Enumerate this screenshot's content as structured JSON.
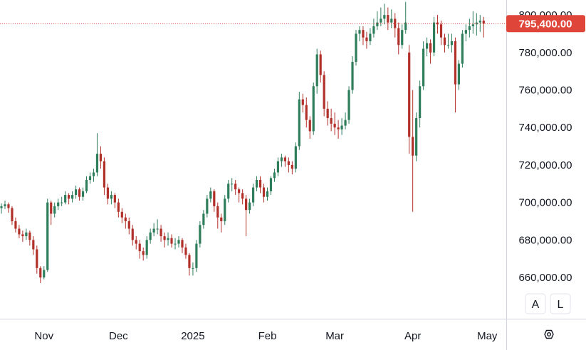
{
  "chart_data": {
    "type": "candlestick",
    "colors": {
      "up": "#2e7d5b",
      "down": "#b2302a",
      "price_line": "#e0453a",
      "grid": "#e0e3eb",
      "axis": "#d1d4dc",
      "text": "#131722"
    },
    "last_price": 795400,
    "last_price_label": "795,400.00",
    "y_axis": {
      "range": [
        638000,
        808000
      ],
      "ticks": [
        {
          "value": 800000,
          "label": "800,000.00"
        },
        {
          "value": 780000,
          "label": "780,000.00"
        },
        {
          "value": 760000,
          "label": "760,000.00"
        },
        {
          "value": 740000,
          "label": "740,000.00"
        },
        {
          "value": 720000,
          "label": "720,000.00"
        },
        {
          "value": 700000,
          "label": "700,000.00"
        },
        {
          "value": 680000,
          "label": "680,000.00"
        },
        {
          "value": 660000,
          "label": "660,000.00"
        }
      ]
    },
    "x_axis": {
      "ticks": [
        {
          "label": "Nov",
          "index": 12
        },
        {
          "label": "Dec",
          "index": 33
        },
        {
          "label": "2025",
          "index": 54
        },
        {
          "label": "Feb",
          "index": 75
        },
        {
          "label": "Mar",
          "index": 94
        },
        {
          "label": "Apr",
          "index": 116
        },
        {
          "label": "May",
          "index": 137
        }
      ]
    },
    "closes": [
      698000,
      699000,
      697000,
      690000,
      686000,
      683000,
      682000,
      684000,
      680000,
      675000,
      665000,
      660000,
      664000,
      700000,
      694000,
      698000,
      700000,
      700000,
      704000,
      702000,
      704000,
      707000,
      703000,
      706000,
      712000,
      714000,
      716000,
      726000,
      722000,
      708000,
      702000,
      704000,
      700000,
      695000,
      692000,
      690000,
      686000,
      680000,
      678000,
      674000,
      672000,
      680000,
      684000,
      686000,
      686000,
      682000,
      680000,
      681000,
      678000,
      678000,
      680000,
      676000,
      672000,
      665000,
      665000,
      678000,
      688000,
      694000,
      702000,
      706000,
      698000,
      692000,
      690000,
      702000,
      710000,
      710000,
      707000,
      705000,
      702000,
      696000,
      700000,
      708000,
      712000,
      708000,
      703000,
      706000,
      713000,
      716000,
      722000,
      724000,
      722000,
      720000,
      718000,
      730000,
      755000,
      752000,
      744000,
      738000,
      762000,
      779000,
      768000,
      750000,
      745000,
      742000,
      740000,
      739000,
      741000,
      744000,
      760000,
      775000,
      790000,
      792000,
      788000,
      786000,
      790000,
      794000,
      796000,
      798000,
      800000,
      796000,
      798000,
      793000,
      784000,
      792000,
      796000,
      735000,
      725000,
      745000,
      762000,
      782000,
      785000,
      780000,
      796000,
      795000,
      788000,
      784000,
      784000,
      786000,
      763000,
      774000,
      790000,
      792000,
      794000,
      795000,
      796000,
      797000,
      795400
    ],
    "candles": [
      [
        697000,
        699500,
        694000,
        698000
      ],
      [
        698000,
        701000,
        696500,
        699000
      ],
      [
        699000,
        700000,
        694500,
        697000
      ],
      [
        697000,
        698000,
        688000,
        690000
      ],
      [
        690000,
        692000,
        684000,
        686000
      ],
      [
        686000,
        688000,
        681000,
        683000
      ],
      [
        683000,
        685000,
        679000,
        682000
      ],
      [
        682000,
        686000,
        680000,
        684000
      ],
      [
        684000,
        685000,
        677000,
        680000
      ],
      [
        680000,
        682000,
        672000,
        675000
      ],
      [
        675000,
        677000,
        662000,
        665000
      ],
      [
        665000,
        666000,
        657000,
        660000
      ],
      [
        660000,
        666000,
        659000,
        664000
      ],
      [
        664000,
        702000,
        663000,
        700000
      ],
      [
        700000,
        701000,
        688000,
        694000
      ],
      [
        694000,
        700000,
        692000,
        698000
      ],
      [
        698000,
        702000,
        696000,
        700000
      ],
      [
        700000,
        703000,
        698000,
        700000
      ],
      [
        700000,
        706000,
        699000,
        704000
      ],
      [
        704000,
        705000,
        699000,
        702000
      ],
      [
        702000,
        706000,
        700000,
        704000
      ],
      [
        704000,
        709000,
        702000,
        707000
      ],
      [
        707000,
        708000,
        701000,
        703000
      ],
      [
        703000,
        708000,
        701000,
        706000
      ],
      [
        706000,
        714000,
        705000,
        712000
      ],
      [
        712000,
        716000,
        710000,
        714000
      ],
      [
        714000,
        718000,
        711000,
        716000
      ],
      [
        716000,
        737000,
        714000,
        726000
      ],
      [
        726000,
        730000,
        718000,
        722000
      ],
      [
        722000,
        724000,
        704000,
        708000
      ],
      [
        708000,
        710000,
        699000,
        702000
      ],
      [
        702000,
        706000,
        699000,
        704000
      ],
      [
        704000,
        705000,
        697000,
        700000
      ],
      [
        700000,
        702000,
        692000,
        695000
      ],
      [
        695000,
        697000,
        689000,
        692000
      ],
      [
        692000,
        694000,
        686000,
        690000
      ],
      [
        690000,
        692000,
        683000,
        686000
      ],
      [
        686000,
        688000,
        677000,
        680000
      ],
      [
        680000,
        682000,
        675000,
        678000
      ],
      [
        678000,
        680000,
        670000,
        674000
      ],
      [
        674000,
        676000,
        669000,
        672000
      ],
      [
        672000,
        682000,
        670000,
        680000
      ],
      [
        680000,
        686000,
        678000,
        684000
      ],
      [
        684000,
        689000,
        682000,
        686000
      ],
      [
        686000,
        691000,
        683000,
        686000
      ],
      [
        686000,
        688000,
        679000,
        682000
      ],
      [
        682000,
        684000,
        676000,
        680000
      ],
      [
        680000,
        684000,
        677000,
        681000
      ],
      [
        681000,
        683000,
        676000,
        678000
      ],
      [
        678000,
        681000,
        675000,
        678000
      ],
      [
        678000,
        682000,
        676000,
        680000
      ],
      [
        680000,
        681000,
        673000,
        676000
      ],
      [
        676000,
        678000,
        670000,
        672000
      ],
      [
        672000,
        673000,
        661000,
        665000
      ],
      [
        665000,
        668000,
        661000,
        665000
      ],
      [
        665000,
        680000,
        663000,
        678000
      ],
      [
        678000,
        690000,
        676000,
        688000
      ],
      [
        688000,
        696000,
        686000,
        694000
      ],
      [
        694000,
        704000,
        692000,
        702000
      ],
      [
        702000,
        708000,
        700000,
        706000
      ],
      [
        706000,
        707000,
        695000,
        698000
      ],
      [
        698000,
        700000,
        686000,
        692000
      ],
      [
        692000,
        694000,
        684000,
        690000
      ],
      [
        690000,
        704000,
        688000,
        702000
      ],
      [
        702000,
        712000,
        700000,
        710000
      ],
      [
        710000,
        713000,
        706000,
        710000
      ],
      [
        710000,
        712000,
        704000,
        707000
      ],
      [
        707000,
        708000,
        700000,
        705000
      ],
      [
        705000,
        707000,
        699000,
        702000
      ],
      [
        702000,
        704000,
        682000,
        696000
      ],
      [
        696000,
        702000,
        694000,
        700000
      ],
      [
        700000,
        710000,
        698000,
        708000
      ],
      [
        708000,
        714000,
        706000,
        712000
      ],
      [
        712000,
        714000,
        705000,
        708000
      ],
      [
        708000,
        710000,
        700000,
        703000
      ],
      [
        703000,
        708000,
        701000,
        706000
      ],
      [
        706000,
        714000,
        704000,
        713000
      ],
      [
        713000,
        718000,
        711000,
        716000
      ],
      [
        716000,
        724000,
        714000,
        722000
      ],
      [
        722000,
        726000,
        719000,
        724000
      ],
      [
        724000,
        725000,
        719000,
        722000
      ],
      [
        722000,
        724000,
        716000,
        720000
      ],
      [
        720000,
        722000,
        715000,
        718000
      ],
      [
        718000,
        732000,
        716000,
        730000
      ],
      [
        730000,
        759000,
        728000,
        755000
      ],
      [
        755000,
        758000,
        748000,
        752000
      ],
      [
        752000,
        756000,
        740000,
        744000
      ],
      [
        744000,
        746000,
        734000,
        738000
      ],
      [
        738000,
        764000,
        736000,
        762000
      ],
      [
        762000,
        782000,
        758000,
        779000
      ],
      [
        779000,
        781000,
        764000,
        768000
      ],
      [
        768000,
        770000,
        746000,
        750000
      ],
      [
        750000,
        754000,
        741000,
        745000
      ],
      [
        745000,
        750000,
        738000,
        742000
      ],
      [
        742000,
        748000,
        736000,
        740000
      ],
      [
        740000,
        744000,
        734000,
        739000
      ],
      [
        739000,
        745000,
        736000,
        741000
      ],
      [
        741000,
        748000,
        739000,
        744000
      ],
      [
        744000,
        762000,
        742000,
        760000
      ],
      [
        760000,
        778000,
        758000,
        775000
      ],
      [
        775000,
        792000,
        773000,
        790000
      ],
      [
        790000,
        794000,
        786000,
        792000
      ],
      [
        792000,
        794000,
        784000,
        788000
      ],
      [
        788000,
        791000,
        782000,
        786000
      ],
      [
        786000,
        793000,
        784000,
        790000
      ],
      [
        790000,
        798000,
        788000,
        794000
      ],
      [
        794000,
        802000,
        792000,
        796000
      ],
      [
        796000,
        804000,
        794000,
        798000
      ],
      [
        798000,
        806000,
        795000,
        800000
      ],
      [
        800000,
        804000,
        792000,
        796000
      ],
      [
        796000,
        803000,
        793000,
        798000
      ],
      [
        798000,
        801000,
        788000,
        793000
      ],
      [
        793000,
        796000,
        779000,
        784000
      ],
      [
        784000,
        795000,
        782000,
        792000
      ],
      [
        792000,
        807000,
        790000,
        796000
      ],
      [
        780000,
        784000,
        726000,
        735000
      ],
      [
        735000,
        760000,
        695000,
        725000
      ],
      [
        725000,
        748000,
        722000,
        745000
      ],
      [
        745000,
        765000,
        740000,
        762000
      ],
      [
        762000,
        786000,
        760000,
        782000
      ],
      [
        782000,
        788000,
        778000,
        785000
      ],
      [
        785000,
        787000,
        774000,
        780000
      ],
      [
        780000,
        799000,
        778000,
        796000
      ],
      [
        796000,
        800000,
        790000,
        795000
      ],
      [
        795000,
        797000,
        784000,
        788000
      ],
      [
        788000,
        790000,
        780000,
        784000
      ],
      [
        784000,
        790000,
        782000,
        784000
      ],
      [
        784000,
        790000,
        780000,
        786000
      ],
      [
        786000,
        788000,
        748000,
        763000
      ],
      [
        763000,
        776000,
        760000,
        774000
      ],
      [
        774000,
        792000,
        772000,
        790000
      ],
      [
        790000,
        795000,
        786000,
        792000
      ],
      [
        792000,
        798000,
        788000,
        794000
      ],
      [
        794000,
        802000,
        790000,
        795000
      ],
      [
        795000,
        801000,
        789000,
        796000
      ],
      [
        796000,
        800000,
        791000,
        797000
      ],
      [
        797000,
        799000,
        788000,
        795400
      ]
    ]
  },
  "toolbar": {
    "auto_scale_label": "A",
    "log_scale_label": "L",
    "settings_icon": "hexagon-settings-icon"
  }
}
